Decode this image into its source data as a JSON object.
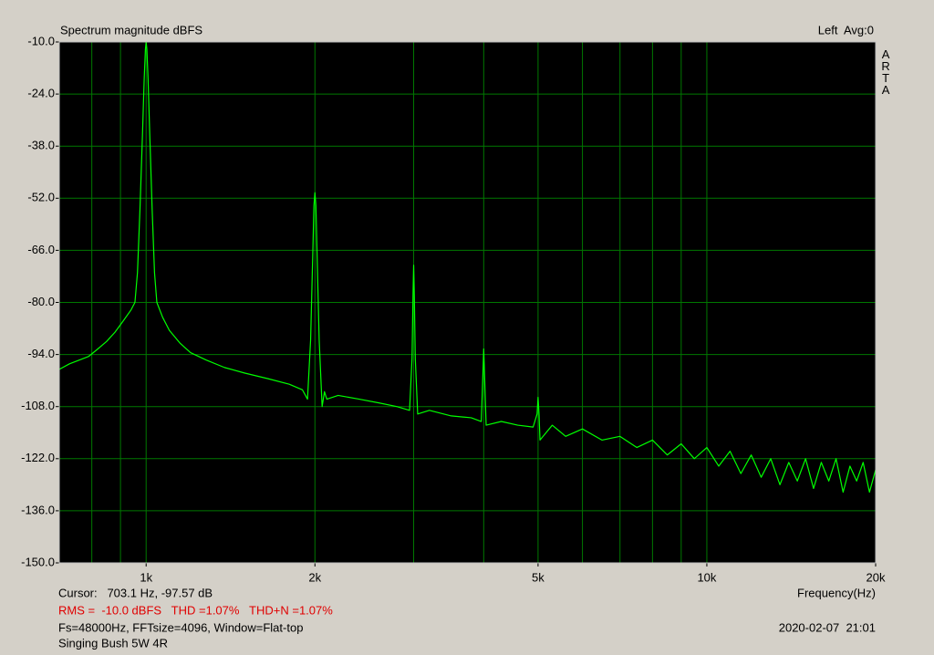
{
  "chart_data": {
    "type": "line",
    "title": "Spectrum magnitude dBFS",
    "channel_label": "Left  Avg:0",
    "brand": "ARTA",
    "xlabel": "Frequency(Hz)",
    "cursor": "Cursor:   703.1 Hz, -97.57 dB",
    "measurement": "RMS =  -10.0 dBFS   THD =1.07%   THD+N =1.07%",
    "settings": "Fs=48000Hz, FFTsize=4096, Window=Flat-top",
    "timestamp": "2020-02-07  21:01",
    "note": "Singing Bush 5W 4R",
    "xscale": "log",
    "xlim": [
      700,
      20000
    ],
    "xticks": [
      {
        "value": 1000,
        "label": "1k"
      },
      {
        "value": 2000,
        "label": "2k"
      },
      {
        "value": 5000,
        "label": "5k"
      },
      {
        "value": 10000,
        "label": "10k"
      },
      {
        "value": 20000,
        "label": "20k"
      }
    ],
    "xminor": [
      800,
      900,
      3000,
      4000,
      6000,
      7000,
      8000,
      9000
    ],
    "ylim": [
      -150,
      -10
    ],
    "yticks": [
      {
        "value": -10,
        "label": "-10.0"
      },
      {
        "value": -24,
        "label": "-24.0"
      },
      {
        "value": -38,
        "label": "-38.0"
      },
      {
        "value": -52,
        "label": "-52.0"
      },
      {
        "value": -66,
        "label": "-66.0"
      },
      {
        "value": -80,
        "label": "-80.0"
      },
      {
        "value": -94,
        "label": "-94.0"
      },
      {
        "value": -108,
        "label": "-108.0"
      },
      {
        "value": -122,
        "label": "-122.0"
      },
      {
        "value": -136,
        "label": "-136.0"
      },
      {
        "value": -150,
        "label": "-150.0"
      }
    ],
    "grid": true,
    "grid_color": "#007800",
    "plot_background": "#000000",
    "x": [
      700,
      730,
      760,
      790,
      820,
      850,
      880,
      910,
      940,
      955,
      965,
      975,
      985,
      992,
      997,
      1000,
      1003,
      1008,
      1015,
      1025,
      1035,
      1045,
      1070,
      1100,
      1150,
      1200,
      1280,
      1380,
      1500,
      1650,
      1800,
      1900,
      1940,
      1965,
      1980,
      1992,
      2000,
      2008,
      2020,
      2035,
      2060,
      2080,
      2100,
      2200,
      2400,
      2600,
      2800,
      2950,
      2980,
      2992,
      3000,
      3008,
      3020,
      3050,
      3200,
      3500,
      3800,
      3960,
      3985,
      4000,
      4015,
      4040,
      4300,
      4600,
      4900,
      4980,
      5000,
      5020,
      5040,
      5300,
      5600,
      6000,
      6500,
      7000,
      7500,
      8000,
      8500,
      9000,
      9500,
      10000,
      10500,
      11000,
      11500,
      12000,
      12500,
      13000,
      13500,
      14000,
      14500,
      15000,
      15500,
      16000,
      16500,
      17000,
      17500,
      18000,
      18500,
      19000,
      19500,
      20000
    ],
    "series": [
      {
        "name": "Left",
        "color": "#00ff00",
        "values": [
          -98,
          -96.5,
          -95.5,
          -94.5,
          -92.5,
          -90.5,
          -88,
          -85,
          -82,
          -80,
          -72,
          -55,
          -35,
          -20,
          -12,
          -10,
          -12,
          -20,
          -35,
          -55,
          -72,
          -80,
          -84,
          -87.5,
          -91,
          -93.5,
          -95.5,
          -97.5,
          -99,
          -100.5,
          -102,
          -103.5,
          -106,
          -90,
          -70,
          -54,
          -50.5,
          -54,
          -70,
          -90,
          -108,
          -104,
          -106,
          -105,
          -106,
          -107,
          -108,
          -109,
          -95,
          -78,
          -70,
          -78,
          -95,
          -110,
          -109,
          -110.5,
          -111,
          -112,
          -100,
          -92.5,
          -100,
          -113,
          -112,
          -113,
          -113.5,
          -110,
          -105.5,
          -110,
          -117,
          -113,
          -116,
          -114,
          -117,
          -116,
          -119,
          -117,
          -121,
          -118,
          -122,
          -119,
          -124,
          -120,
          -126,
          -121,
          -127,
          -122,
          -129,
          -123,
          -128,
          -122,
          -130,
          -123,
          -128,
          -122,
          -131,
          -124,
          -128,
          -123,
          -131,
          -125
        ]
      }
    ]
  }
}
